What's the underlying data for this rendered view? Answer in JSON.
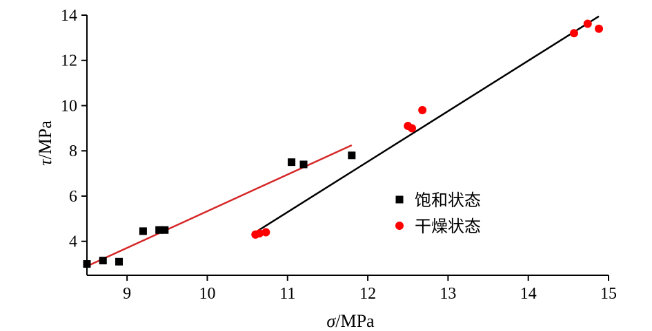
{
  "chart_data": {
    "type": "scatter",
    "xlabel_symbol": "σ",
    "xlabel_unit": "/MPa",
    "ylabel_symbol": "τ",
    "ylabel_unit": "/MPa",
    "xlim": [
      8.5,
      15
    ],
    "ylim": [
      2.5,
      14
    ],
    "xticks": [
      9,
      10,
      11,
      12,
      13,
      14,
      15
    ],
    "yticks": [
      4,
      6,
      8,
      10,
      12,
      14
    ],
    "legend_position": "right-center",
    "series": [
      {
        "name": "饱和状态",
        "marker": "square",
        "color": "#000000",
        "points": [
          [
            8.5,
            3.0
          ],
          [
            8.7,
            3.15
          ],
          [
            8.9,
            3.1
          ],
          [
            9.2,
            4.45
          ],
          [
            9.4,
            4.5
          ],
          [
            9.47,
            4.5
          ],
          [
            11.05,
            7.5
          ],
          [
            11.2,
            7.4
          ],
          [
            11.8,
            7.8
          ]
        ],
        "fit_line": {
          "color": "#d62728",
          "x": [
            8.5,
            11.8
          ],
          "y": [
            2.9,
            8.25
          ]
        }
      },
      {
        "name": "干燥状态",
        "marker": "circle",
        "color": "#ff0000",
        "points": [
          [
            10.6,
            4.3
          ],
          [
            10.65,
            4.35
          ],
          [
            10.73,
            4.4
          ],
          [
            12.5,
            9.1
          ],
          [
            12.55,
            9.0
          ],
          [
            12.68,
            9.8
          ],
          [
            14.57,
            13.2
          ],
          [
            14.74,
            13.62
          ],
          [
            14.88,
            13.4
          ]
        ],
        "fit_line": {
          "color": "#000000",
          "x": [
            10.6,
            14.88
          ],
          "y": [
            4.4,
            13.95
          ]
        }
      }
    ]
  }
}
